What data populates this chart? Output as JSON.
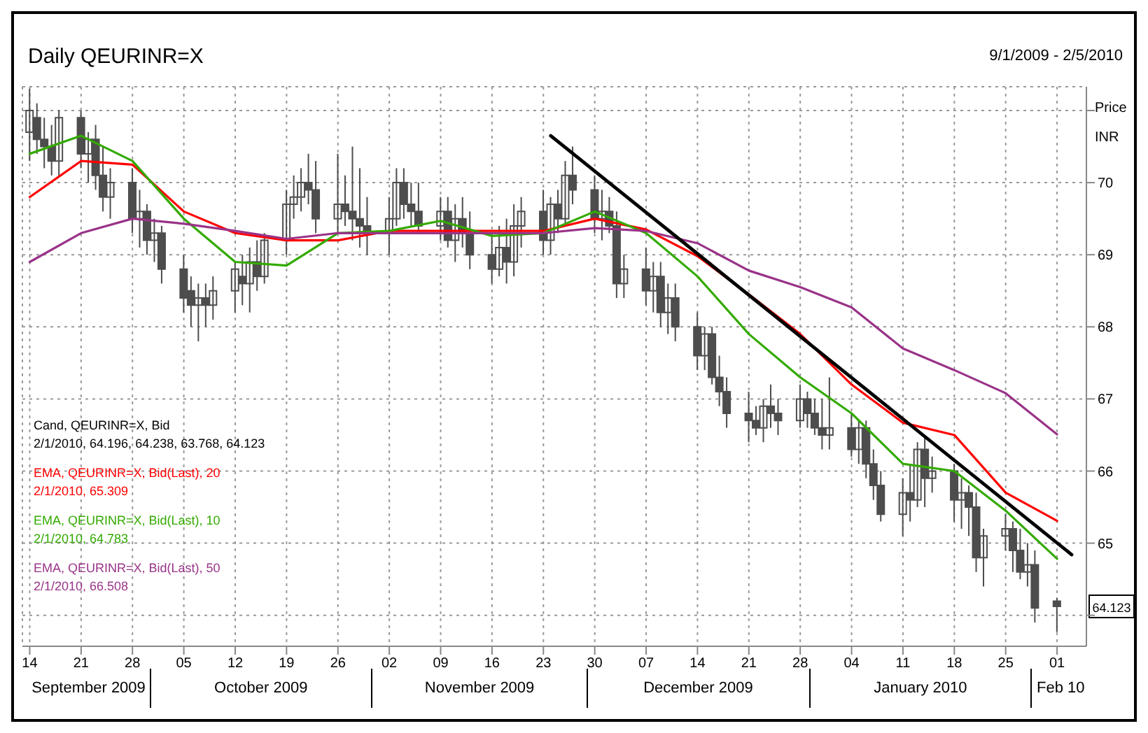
{
  "chart_data": {
    "type": "candlestick",
    "title": "Daily QEURINR=X",
    "subtitle": "9/1/2009 - 2/5/2010",
    "ylabel": "Price\nINR",
    "legend_title": "Cand, QEURINR=X, Bid\n2/1/2010, 64.196, 64.238, 63.768, 64.123",
    "color": "#4d4d4d",
    "x": [
      "2009-09-14",
      "2009-09-15",
      "2009-09-16",
      "2009-09-17",
      "2009-09-18",
      "2009-09-21",
      "2009-09-22",
      "2009-09-23",
      "2009-09-24",
      "2009-09-25",
      "2009-09-28",
      "2009-09-29",
      "2009-09-30",
      "2009-10-01",
      "2009-10-02",
      "2009-10-05",
      "2009-10-06",
      "2009-10-07",
      "2009-10-08",
      "2009-10-09",
      "2009-10-12",
      "2009-10-13",
      "2009-10-14",
      "2009-10-15",
      "2009-10-16",
      "2009-10-19",
      "2009-10-20",
      "2009-10-21",
      "2009-10-22",
      "2009-10-23",
      "2009-10-26",
      "2009-10-27",
      "2009-10-28",
      "2009-10-29",
      "2009-10-30",
      "2009-11-02",
      "2009-11-03",
      "2009-11-04",
      "2009-11-05",
      "2009-11-06",
      "2009-11-09",
      "2009-11-10",
      "2009-11-11",
      "2009-11-12",
      "2009-11-13",
      "2009-11-16",
      "2009-11-17",
      "2009-11-18",
      "2009-11-19",
      "2009-11-20",
      "2009-11-23",
      "2009-11-24",
      "2009-11-25",
      "2009-11-26",
      "2009-11-27",
      "2009-11-30",
      "2009-12-01",
      "2009-12-02",
      "2009-12-03",
      "2009-12-04",
      "2009-12-07",
      "2009-12-08",
      "2009-12-09",
      "2009-12-10",
      "2009-12-11",
      "2009-12-14",
      "2009-12-15",
      "2009-12-16",
      "2009-12-17",
      "2009-12-18",
      "2009-12-21",
      "2009-12-22",
      "2009-12-23",
      "2009-12-24",
      "2009-12-25",
      "2009-12-28",
      "2009-12-29",
      "2009-12-30",
      "2009-12-31",
      "2010-01-01",
      "2010-01-04",
      "2010-01-05",
      "2010-01-06",
      "2010-01-07",
      "2010-01-08",
      "2010-01-11",
      "2010-01-12",
      "2010-01-13",
      "2010-01-14",
      "2010-01-15",
      "2010-01-18",
      "2010-01-19",
      "2010-01-20",
      "2010-01-21",
      "2010-01-22",
      "2010-01-25",
      "2010-01-26",
      "2010-01-27",
      "2010-01-28",
      "2010-01-29",
      "2010-02-01"
    ],
    "ohlc": [
      [
        70.7,
        71.3,
        70.3,
        71.0
      ],
      [
        70.9,
        71.1,
        70.4,
        70.6
      ],
      [
        70.6,
        70.9,
        70.2,
        70.5
      ],
      [
        70.5,
        70.8,
        70.1,
        70.3
      ],
      [
        70.3,
        71.0,
        70.1,
        70.9
      ],
      [
        70.9,
        71.0,
        70.2,
        70.4
      ],
      [
        70.4,
        70.7,
        70.0,
        70.6
      ],
      [
        70.6,
        70.8,
        69.9,
        70.1
      ],
      [
        70.1,
        70.5,
        69.6,
        69.8
      ],
      [
        69.8,
        70.2,
        69.5,
        70.0
      ],
      [
        70.0,
        70.2,
        69.3,
        69.5
      ],
      [
        69.5,
        69.9,
        69.1,
        69.6
      ],
      [
        69.6,
        69.7,
        69.0,
        69.2
      ],
      [
        69.2,
        69.5,
        68.9,
        69.3
      ],
      [
        69.3,
        69.4,
        68.6,
        68.8
      ],
      [
        68.8,
        69.0,
        68.2,
        68.4
      ],
      [
        68.5,
        68.7,
        68.0,
        68.3
      ],
      [
        68.3,
        68.6,
        67.8,
        68.4
      ],
      [
        68.4,
        68.6,
        68.0,
        68.3
      ],
      [
        68.3,
        68.7,
        68.1,
        68.5
      ],
      [
        68.5,
        68.9,
        68.2,
        68.8
      ],
      [
        68.7,
        69.0,
        68.3,
        68.6
      ],
      [
        68.6,
        69.1,
        68.2,
        68.9
      ],
      [
        68.9,
        69.2,
        68.5,
        68.7
      ],
      [
        68.7,
        69.3,
        68.6,
        69.2
      ],
      [
        69.2,
        69.9,
        69.0,
        69.7
      ],
      [
        69.7,
        70.1,
        69.5,
        69.8
      ],
      [
        69.8,
        70.2,
        69.6,
        70.0
      ],
      [
        70.0,
        70.4,
        69.7,
        69.9
      ],
      [
        69.9,
        70.3,
        69.3,
        69.5
      ],
      [
        69.5,
        70.4,
        69.3,
        69.7
      ],
      [
        69.7,
        70.1,
        69.4,
        69.6
      ],
      [
        69.6,
        70.5,
        69.2,
        69.5
      ],
      [
        69.5,
        70.2,
        69.1,
        69.4
      ],
      [
        69.4,
        69.8,
        69.0,
        69.3
      ],
      [
        69.3,
        69.8,
        69.0,
        69.5
      ],
      [
        69.5,
        70.2,
        69.4,
        70.0
      ],
      [
        70.0,
        70.2,
        69.5,
        69.7
      ],
      [
        69.7,
        70.0,
        69.4,
        69.6
      ],
      [
        69.6,
        70.0,
        69.3,
        69.4
      ],
      [
        69.4,
        69.8,
        69.2,
        69.6
      ],
      [
        69.6,
        69.8,
        69.1,
        69.2
      ],
      [
        69.2,
        69.7,
        68.9,
        69.5
      ],
      [
        69.5,
        69.8,
        69.1,
        69.3
      ],
      [
        69.3,
        69.6,
        68.8,
        69.0
      ],
      [
        69.0,
        69.3,
        68.6,
        68.8
      ],
      [
        68.8,
        69.4,
        68.7,
        69.1
      ],
      [
        69.1,
        69.5,
        68.6,
        68.9
      ],
      [
        68.9,
        69.7,
        68.7,
        69.4
      ],
      [
        69.4,
        69.8,
        69.1,
        69.6
      ],
      [
        69.6,
        69.9,
        69.0,
        69.2
      ],
      [
        69.2,
        69.8,
        69.0,
        69.7
      ],
      [
        69.7,
        69.9,
        69.3,
        69.5
      ],
      [
        69.5,
        70.3,
        69.4,
        70.1
      ],
      [
        70.1,
        70.5,
        69.7,
        69.9
      ],
      [
        69.9,
        70.1,
        69.3,
        69.5
      ],
      [
        69.5,
        69.9,
        69.2,
        69.6
      ],
      [
        69.6,
        69.8,
        69.3,
        69.4
      ],
      [
        69.4,
        69.6,
        68.4,
        68.6
      ],
      [
        68.6,
        69.0,
        68.4,
        68.8
      ],
      [
        68.8,
        69.1,
        68.3,
        68.5
      ],
      [
        68.5,
        68.9,
        68.2,
        68.7
      ],
      [
        68.7,
        68.9,
        68.0,
        68.2
      ],
      [
        68.2,
        68.6,
        67.9,
        68.4
      ],
      [
        68.4,
        68.6,
        67.8,
        68.0
      ],
      [
        68.0,
        68.2,
        67.4,
        67.6
      ],
      [
        67.6,
        68.0,
        67.4,
        67.9
      ],
      [
        67.9,
        68.0,
        67.2,
        67.3
      ],
      [
        67.3,
        67.6,
        66.9,
        67.1
      ],
      [
        67.1,
        67.3,
        66.6,
        66.8
      ],
      [
        66.8,
        67.1,
        66.4,
        66.7
      ],
      [
        66.7,
        66.9,
        66.5,
        66.6
      ],
      [
        66.6,
        67.0,
        66.4,
        66.9
      ],
      [
        66.9,
        67.2,
        66.6,
        66.8
      ],
      [
        66.8,
        67.0,
        66.5,
        66.7
      ],
      [
        66.7,
        67.2,
        66.6,
        67.0
      ],
      [
        67.0,
        67.1,
        66.6,
        66.8
      ],
      [
        66.8,
        67.0,
        66.5,
        66.6
      ],
      [
        66.6,
        67.0,
        66.3,
        66.5
      ],
      [
        66.5,
        67.3,
        66.3,
        66.6
      ],
      [
        66.6,
        66.8,
        66.2,
        66.3
      ],
      [
        66.3,
        66.7,
        66.1,
        66.6
      ],
      [
        66.6,
        66.7,
        65.9,
        66.1
      ],
      [
        66.1,
        66.3,
        65.6,
        65.8
      ],
      [
        65.8,
        66.0,
        65.3,
        65.4
      ],
      [
        65.4,
        65.9,
        65.1,
        65.7
      ],
      [
        65.7,
        66.1,
        65.3,
        65.6
      ],
      [
        65.6,
        66.4,
        65.5,
        66.3
      ],
      [
        66.3,
        66.5,
        65.5,
        65.9
      ],
      [
        65.9,
        66.2,
        65.7,
        66.0
      ],
      [
        66.0,
        66.1,
        65.3,
        65.6
      ],
      [
        65.6,
        65.9,
        65.2,
        65.7
      ],
      [
        65.7,
        65.8,
        65.1,
        65.5
      ],
      [
        65.5,
        65.7,
        64.6,
        64.8
      ],
      [
        64.8,
        65.2,
        64.4,
        65.1
      ],
      [
        65.1,
        65.4,
        64.9,
        65.2
      ],
      [
        65.2,
        65.3,
        64.6,
        64.9
      ],
      [
        64.9,
        65.2,
        64.5,
        64.6
      ],
      [
        64.6,
        65.0,
        64.4,
        64.7
      ],
      [
        64.7,
        64.9,
        63.9,
        64.1
      ],
      [
        64.196,
        64.238,
        63.768,
        64.123
      ]
    ],
    "series": [
      {
        "type": "line",
        "name": "EMA, QEURINR=X, Bid(Last), 20\n2/1/2010, 65.309",
        "color": "#ff0000",
        "x": [
          "2009-09-14",
          "2009-09-21",
          "2009-09-28",
          "2009-10-05",
          "2009-10-12",
          "2009-10-19",
          "2009-10-26",
          "2009-11-02",
          "2009-11-09",
          "2009-11-16",
          "2009-11-23",
          "2009-11-30",
          "2009-12-07",
          "2009-12-14",
          "2009-12-21",
          "2009-12-28",
          "2010-01-04",
          "2010-01-11",
          "2010-01-18",
          "2010-01-25",
          "2010-02-01"
        ],
        "values": [
          69.8,
          70.3,
          70.25,
          69.6,
          69.3,
          69.2,
          69.2,
          69.33,
          69.33,
          69.33,
          69.33,
          69.5,
          69.35,
          68.98,
          68.45,
          67.9,
          67.2,
          66.67,
          66.5,
          65.7,
          65.309
        ]
      },
      {
        "type": "line",
        "name": "EMA, QEURINR=X, Bid(Last), 10\n2/1/2010, 64.783",
        "color": "#33aa00",
        "x": [
          "2009-09-14",
          "2009-09-21",
          "2009-09-28",
          "2009-10-05",
          "2009-10-12",
          "2009-10-19",
          "2009-10-26",
          "2009-11-02",
          "2009-11-09",
          "2009-11-16",
          "2009-11-23",
          "2009-11-30",
          "2009-12-07",
          "2009-12-14",
          "2009-12-21",
          "2009-12-28",
          "2010-01-04",
          "2010-01-11",
          "2010-01-18",
          "2010-01-25",
          "2010-02-01"
        ],
        "values": [
          70.4,
          70.65,
          70.3,
          69.5,
          68.9,
          68.85,
          69.3,
          69.33,
          69.47,
          69.26,
          69.3,
          69.6,
          69.3,
          68.7,
          67.9,
          67.3,
          66.8,
          66.1,
          66.0,
          65.45,
          64.783
        ]
      },
      {
        "type": "line",
        "name": "EMA, QEURINR=X, Bid(Last), 50\n2/1/2010, 66.508",
        "color": "#993388",
        "x": [
          "2009-09-14",
          "2009-09-21",
          "2009-09-28",
          "2009-10-05",
          "2009-10-12",
          "2009-10-19",
          "2009-10-26",
          "2009-11-02",
          "2009-11-09",
          "2009-11-16",
          "2009-11-23",
          "2009-11-30",
          "2009-12-07",
          "2009-12-14",
          "2009-12-21",
          "2009-12-28",
          "2010-01-04",
          "2010-01-11",
          "2010-01-18",
          "2010-01-25",
          "2010-02-01"
        ],
        "values": [
          68.9,
          69.3,
          69.5,
          69.43,
          69.33,
          69.22,
          69.3,
          69.3,
          69.3,
          69.3,
          69.3,
          69.37,
          69.33,
          69.16,
          68.78,
          68.55,
          68.27,
          67.7,
          67.4,
          67.08,
          66.508
        ]
      },
      {
        "type": "line",
        "color": "#000000",
        "x": [
          "2009-11-24",
          "2010-02-03"
        ],
        "values": [
          70.65,
          64.84
        ]
      }
    ],
    "xlim": [
      "2009-09-13",
      "2010-02-05"
    ],
    "xticks": [
      {
        "value": "2009-09-14",
        "label": "14"
      },
      {
        "value": "2009-09-21",
        "label": "21"
      },
      {
        "value": "2009-09-28",
        "label": "28"
      },
      {
        "value": "2009-10-05",
        "label": "05"
      },
      {
        "value": "2009-10-12",
        "label": "12"
      },
      {
        "value": "2009-10-19",
        "label": "19"
      },
      {
        "value": "2009-10-26",
        "label": "26"
      },
      {
        "value": "2009-11-02",
        "label": "02"
      },
      {
        "value": "2009-11-09",
        "label": "09"
      },
      {
        "value": "2009-11-16",
        "label": "16"
      },
      {
        "value": "2009-11-23",
        "label": "23"
      },
      {
        "value": "2009-11-30",
        "label": "30"
      },
      {
        "value": "2009-12-07",
        "label": "07"
      },
      {
        "value": "2009-12-14",
        "label": "14"
      },
      {
        "value": "2009-12-21",
        "label": "21"
      },
      {
        "value": "2009-12-28",
        "label": "28"
      },
      {
        "value": "2010-01-04",
        "label": "04"
      },
      {
        "value": "2010-01-11",
        "label": "11"
      },
      {
        "value": "2010-01-18",
        "label": "18"
      },
      {
        "value": "2010-01-25",
        "label": "25"
      },
      {
        "value": "2010-02-01",
        "label": "01"
      }
    ],
    "ylim": [
      63.57,
      71.33
    ],
    "yticks": [
      {
        "value": 64,
        "label": null
      },
      65,
      66,
      67,
      68,
      69,
      70,
      {
        "value": 71,
        "label": null
      }
    ],
    "annotations": [
      "September 2009",
      "October 2009",
      "November 2009",
      "December 2009",
      "January 2010",
      "Feb 10",
      {
        "text": "64.123",
        "y": 64.123
      }
    ],
    "grid": true,
    "legend": "bottom left"
  }
}
